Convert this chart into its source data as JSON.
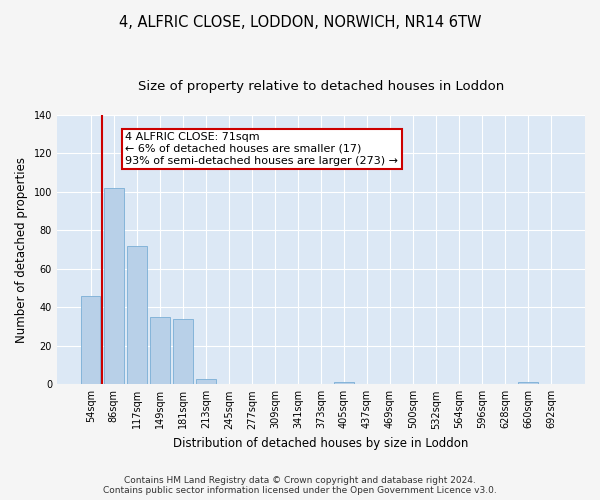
{
  "title": "4, ALFRIC CLOSE, LODDON, NORWICH, NR14 6TW",
  "subtitle": "Size of property relative to detached houses in Loddon",
  "xlabel": "Distribution of detached houses by size in Loddon",
  "ylabel": "Number of detached properties",
  "categories": [
    "54sqm",
    "86sqm",
    "117sqm",
    "149sqm",
    "181sqm",
    "213sqm",
    "245sqm",
    "277sqm",
    "309sqm",
    "341sqm",
    "373sqm",
    "405sqm",
    "437sqm",
    "469sqm",
    "500sqm",
    "532sqm",
    "564sqm",
    "596sqm",
    "628sqm",
    "660sqm",
    "692sqm"
  ],
  "values": [
    46,
    102,
    72,
    35,
    34,
    3,
    0,
    0,
    0,
    0,
    0,
    1,
    0,
    0,
    0,
    0,
    0,
    0,
    0,
    1,
    0
  ],
  "bar_color": "#b8d0e8",
  "bar_edge_color": "#7aaed6",
  "property_line_color": "#cc0000",
  "property_line_x": 0.5,
  "ylim": [
    0,
    140
  ],
  "yticks": [
    0,
    20,
    40,
    60,
    80,
    100,
    120,
    140
  ],
  "annotation_line1": "4 ALFRIC CLOSE: 71sqm",
  "annotation_line2": "← 6% of detached houses are smaller (17)",
  "annotation_line3": "93% of semi-detached houses are larger (273) →",
  "annotation_box_facecolor": "#ffffff",
  "annotation_box_edgecolor": "#cc0000",
  "figure_facecolor": "#f5f5f5",
  "plot_facecolor": "#dce8f5",
  "grid_color": "#ffffff",
  "title_fontsize": 10.5,
  "subtitle_fontsize": 9.5,
  "axis_label_fontsize": 8.5,
  "tick_fontsize": 7,
  "annotation_fontsize": 8,
  "footer_fontsize": 6.5,
  "footer_line1": "Contains HM Land Registry data © Crown copyright and database right 2024.",
  "footer_line2": "Contains public sector information licensed under the Open Government Licence v3.0."
}
